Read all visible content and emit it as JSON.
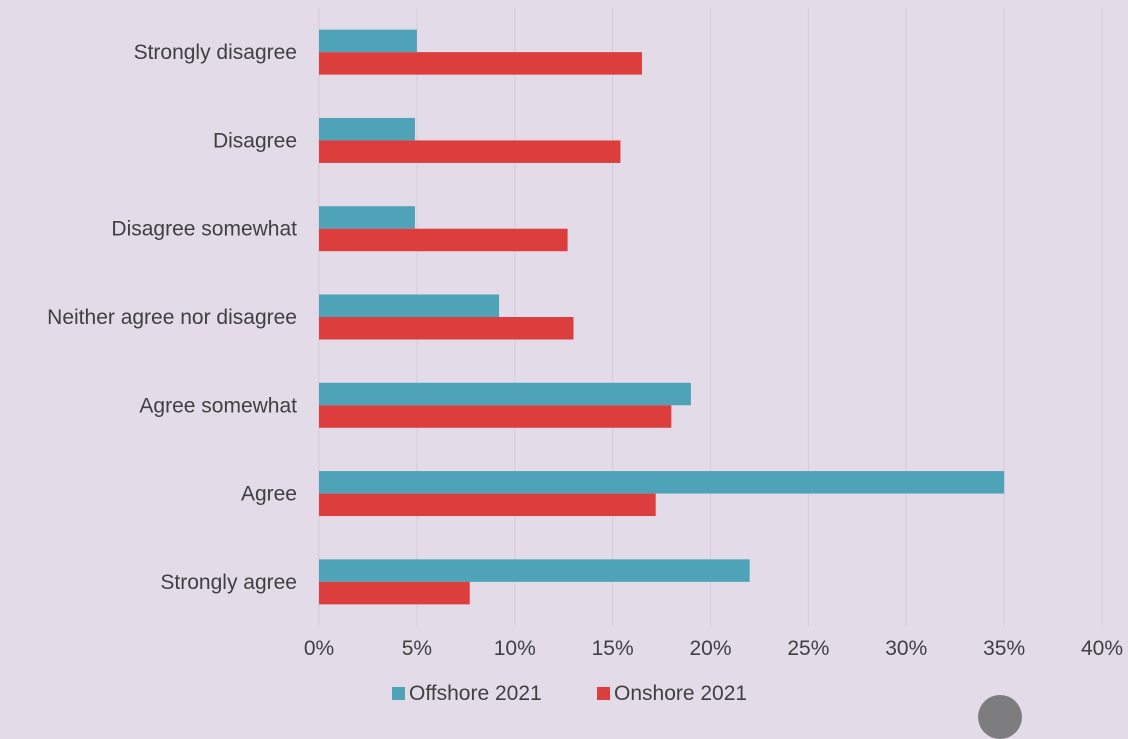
{
  "chart_data": {
    "type": "bar",
    "orientation": "horizontal",
    "categories": [
      "Strongly disagree",
      "Disagree",
      "Disagree somewhat",
      "Neither agree nor disagree",
      "Agree somewhat",
      "Agree",
      "Strongly agree"
    ],
    "series": [
      {
        "name": "Offshore 2021",
        "color": "#4ea3b8",
        "values": [
          5,
          4.9,
          4.9,
          9.2,
          19,
          35,
          22
        ]
      },
      {
        "name": "Onshore 2021",
        "color": "#dc3e3e",
        "values": [
          16.5,
          15.4,
          12.7,
          13,
          18,
          17.2,
          7.7
        ]
      }
    ],
    "xlim": [
      0,
      40
    ],
    "x_ticks": [
      "0%",
      "5%",
      "10%",
      "15%",
      "20%",
      "25%",
      "30%",
      "35%",
      "40%"
    ],
    "grid": true,
    "legend_position": "bottom"
  }
}
